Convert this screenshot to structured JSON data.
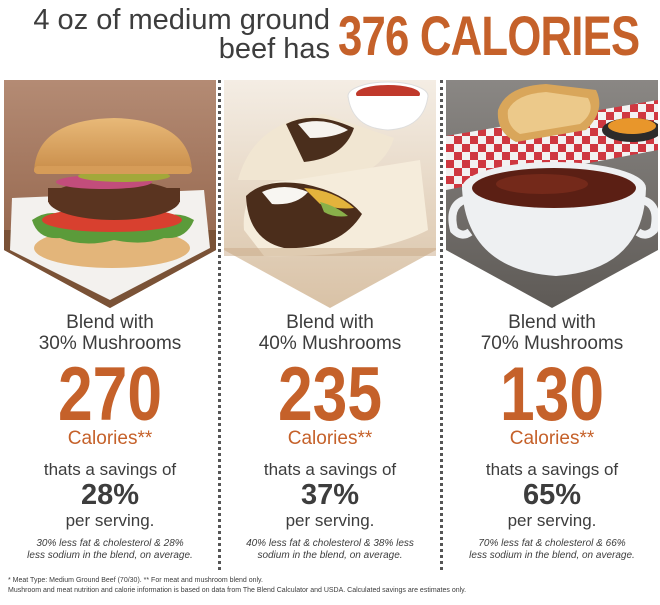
{
  "header": {
    "lead_line1": "4 oz of medium ground",
    "lead_line2": "beef has",
    "headline": "376 CALORIES"
  },
  "columns": [
    {
      "blend_line1": "Blend with",
      "blend_line2": "30% Mushrooms",
      "calories": "270",
      "calories_label": "Calories**",
      "savings_text": "thats a savings of",
      "savings_percent": "28%",
      "per_serving": "per serving.",
      "note_line1": "30% less fat & cholesterol & 28%",
      "note_line2": "less sodium in the blend, on average."
    },
    {
      "blend_line1": "Blend with",
      "blend_line2": "40% Mushrooms",
      "calories": "235",
      "calories_label": "Calories**",
      "savings_text": "thats a savings of",
      "savings_percent": "37%",
      "per_serving": "per serving.",
      "note_line1": "40% less fat & cholesterol & 38% less",
      "note_line2": "sodium in the blend, on average."
    },
    {
      "blend_line1": "Blend with",
      "blend_line2": "70% Mushrooms",
      "calories": "130",
      "calories_label": "Calories**",
      "savings_text": "thats a savings of",
      "savings_percent": "65%",
      "per_serving": "per serving.",
      "note_line1": "70% less fat & cholesterol & 66%",
      "note_line2": "less sodium in the blend, on average."
    }
  ],
  "footer": {
    "line1": "* Meat Type: Medium Ground Beef (70/30).  ** For meat and mushroom blend only.",
    "line2": "Mushroom and meat nutrition and calorie information is based on data from The Blend Calculator and USDA. Calculated savings are estimates only."
  },
  "colors": {
    "accent": "#c5612a",
    "text": "#3d3d3d"
  }
}
